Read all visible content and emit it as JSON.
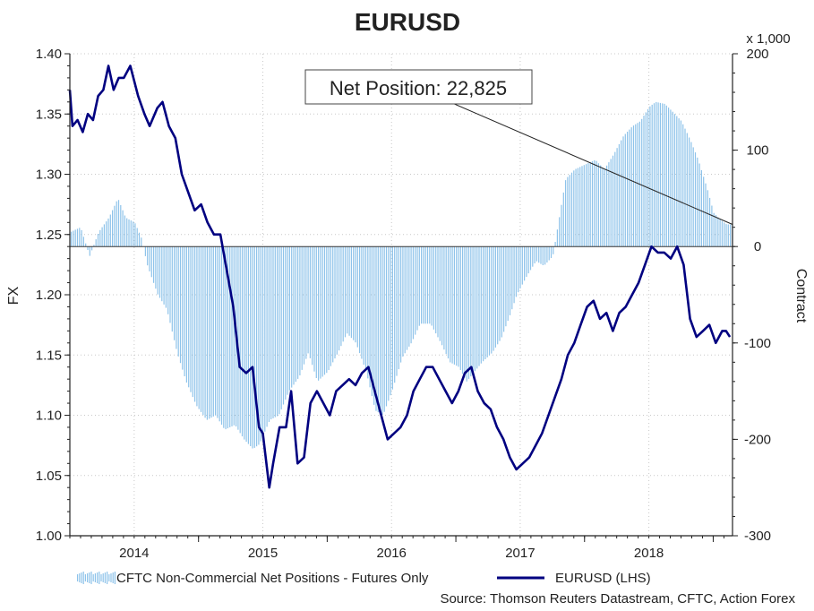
{
  "chart_data": {
    "type": "bar+line",
    "title": "EURUSD",
    "annotation": "Net Position: 22,825",
    "left_axis": {
      "label": "FX",
      "range": [
        1.0,
        1.4
      ],
      "ticks": [
        "1.00",
        "1.05",
        "1.10",
        "1.15",
        "1.20",
        "1.25",
        "1.30",
        "1.35",
        "1.40"
      ],
      "tick_values": [
        1.0,
        1.05,
        1.1,
        1.15,
        1.2,
        1.25,
        1.3,
        1.35,
        1.4
      ]
    },
    "right_axis": {
      "label": "Contract",
      "unit_note": "x 1,000",
      "range": [
        -300,
        200
      ],
      "ticks": [
        "-300",
        "-200",
        "-100",
        "0",
        "100",
        "200"
      ],
      "tick_values": [
        -300,
        -200,
        -100,
        0,
        100,
        200
      ]
    },
    "x_axis": {
      "range": [
        2013.5,
        2018.65
      ],
      "year_labels": [
        "2014",
        "2015",
        "2016",
        "2017",
        "2018"
      ],
      "year_label_positions": [
        2014.0,
        2015.0,
        2016.0,
        2017.0,
        2018.0
      ],
      "year_boundaries": [
        2014.5,
        2015.5,
        2016.5,
        2017.5,
        2018.5
      ]
    },
    "series": [
      {
        "name": "CFTC Non-Commercial Net Positions - Futures Only",
        "kind": "bar",
        "axis": "right",
        "color": "#8ec3ea",
        "points": [
          [
            2013.5,
            15
          ],
          [
            2013.58,
            20
          ],
          [
            2013.65,
            -10
          ],
          [
            2013.72,
            15
          ],
          [
            2013.8,
            30
          ],
          [
            2013.87,
            50
          ],
          [
            2013.93,
            30
          ],
          [
            2014.0,
            25
          ],
          [
            2014.05,
            10
          ],
          [
            2014.1,
            -20
          ],
          [
            2014.18,
            -50
          ],
          [
            2014.25,
            -65
          ],
          [
            2014.33,
            -110
          ],
          [
            2014.4,
            -140
          ],
          [
            2014.48,
            -165
          ],
          [
            2014.56,
            -180
          ],
          [
            2014.63,
            -175
          ],
          [
            2014.7,
            -190
          ],
          [
            2014.78,
            -185
          ],
          [
            2014.85,
            -200
          ],
          [
            2014.92,
            -210
          ],
          [
            2014.97,
            -205
          ],
          [
            2015.05,
            -180
          ],
          [
            2015.12,
            -175
          ],
          [
            2015.2,
            -150
          ],
          [
            2015.28,
            -135
          ],
          [
            2015.35,
            -110
          ],
          [
            2015.42,
            -140
          ],
          [
            2015.5,
            -130
          ],
          [
            2015.58,
            -110
          ],
          [
            2015.65,
            -90
          ],
          [
            2015.72,
            -100
          ],
          [
            2015.8,
            -130
          ],
          [
            2015.87,
            -170
          ],
          [
            2015.93,
            -175
          ],
          [
            2016.0,
            -150
          ],
          [
            2016.08,
            -115
          ],
          [
            2016.15,
            -100
          ],
          [
            2016.22,
            -80
          ],
          [
            2016.3,
            -80
          ],
          [
            2016.38,
            -100
          ],
          [
            2016.45,
            -120
          ],
          [
            2016.52,
            -125
          ],
          [
            2016.58,
            -140
          ],
          [
            2016.64,
            -130
          ],
          [
            2016.7,
            -120
          ],
          [
            2016.78,
            -110
          ],
          [
            2016.85,
            -95
          ],
          [
            2016.92,
            -70
          ],
          [
            2016.97,
            -50
          ],
          [
            2017.05,
            -30
          ],
          [
            2017.12,
            -15
          ],
          [
            2017.18,
            -20
          ],
          [
            2017.25,
            -10
          ],
          [
            2017.3,
            30
          ],
          [
            2017.35,
            70
          ],
          [
            2017.42,
            80
          ],
          [
            2017.5,
            85
          ],
          [
            2017.58,
            90
          ],
          [
            2017.65,
            80
          ],
          [
            2017.72,
            95
          ],
          [
            2017.8,
            115
          ],
          [
            2017.87,
            125
          ],
          [
            2017.93,
            130
          ],
          [
            2018.0,
            145
          ],
          [
            2018.05,
            150
          ],
          [
            2018.12,
            148
          ],
          [
            2018.18,
            140
          ],
          [
            2018.25,
            130
          ],
          [
            2018.32,
            110
          ],
          [
            2018.38,
            90
          ],
          [
            2018.45,
            60
          ],
          [
            2018.5,
            35
          ],
          [
            2018.55,
            28
          ],
          [
            2018.6,
            23
          ]
        ]
      },
      {
        "name": "EURUSD (LHS)",
        "kind": "line",
        "axis": "left",
        "color": "#000080",
        "points": [
          [
            2013.5,
            1.37
          ],
          [
            2013.52,
            1.34
          ],
          [
            2013.56,
            1.345
          ],
          [
            2013.6,
            1.335
          ],
          [
            2013.64,
            1.35
          ],
          [
            2013.68,
            1.345
          ],
          [
            2013.72,
            1.365
          ],
          [
            2013.76,
            1.37
          ],
          [
            2013.8,
            1.39
          ],
          [
            2013.84,
            1.37
          ],
          [
            2013.88,
            1.38
          ],
          [
            2013.92,
            1.38
          ],
          [
            2013.97,
            1.39
          ],
          [
            2014.03,
            1.365
          ],
          [
            2014.08,
            1.35
          ],
          [
            2014.12,
            1.34
          ],
          [
            2014.18,
            1.355
          ],
          [
            2014.22,
            1.36
          ],
          [
            2014.27,
            1.34
          ],
          [
            2014.32,
            1.33
          ],
          [
            2014.37,
            1.3
          ],
          [
            2014.42,
            1.285
          ],
          [
            2014.47,
            1.27
          ],
          [
            2014.52,
            1.275
          ],
          [
            2014.57,
            1.26
          ],
          [
            2014.62,
            1.25
          ],
          [
            2014.67,
            1.25
          ],
          [
            2014.72,
            1.22
          ],
          [
            2014.77,
            1.19
          ],
          [
            2014.82,
            1.14
          ],
          [
            2014.87,
            1.135
          ],
          [
            2014.92,
            1.14
          ],
          [
            2014.97,
            1.09
          ],
          [
            2015.0,
            1.085
          ],
          [
            2015.05,
            1.04
          ],
          [
            2015.08,
            1.06
          ],
          [
            2015.13,
            1.09
          ],
          [
            2015.18,
            1.09
          ],
          [
            2015.22,
            1.12
          ],
          [
            2015.27,
            1.06
          ],
          [
            2015.32,
            1.065
          ],
          [
            2015.37,
            1.11
          ],
          [
            2015.42,
            1.12
          ],
          [
            2015.47,
            1.11
          ],
          [
            2015.52,
            1.1
          ],
          [
            2015.57,
            1.12
          ],
          [
            2015.62,
            1.125
          ],
          [
            2015.67,
            1.13
          ],
          [
            2015.72,
            1.125
          ],
          [
            2015.77,
            1.135
          ],
          [
            2015.82,
            1.14
          ],
          [
            2015.87,
            1.12
          ],
          [
            2015.92,
            1.1
          ],
          [
            2015.97,
            1.08
          ],
          [
            2016.02,
            1.085
          ],
          [
            2016.07,
            1.09
          ],
          [
            2016.12,
            1.1
          ],
          [
            2016.17,
            1.12
          ],
          [
            2016.22,
            1.13
          ],
          [
            2016.27,
            1.14
          ],
          [
            2016.32,
            1.14
          ],
          [
            2016.37,
            1.13
          ],
          [
            2016.42,
            1.12
          ],
          [
            2016.47,
            1.11
          ],
          [
            2016.52,
            1.12
          ],
          [
            2016.57,
            1.135
          ],
          [
            2016.62,
            1.14
          ],
          [
            2016.67,
            1.12
          ],
          [
            2016.72,
            1.11
          ],
          [
            2016.77,
            1.105
          ],
          [
            2016.82,
            1.09
          ],
          [
            2016.87,
            1.08
          ],
          [
            2016.92,
            1.065
          ],
          [
            2016.97,
            1.055
          ],
          [
            2017.02,
            1.06
          ],
          [
            2017.07,
            1.065
          ],
          [
            2017.12,
            1.075
          ],
          [
            2017.17,
            1.085
          ],
          [
            2017.22,
            1.1
          ],
          [
            2017.27,
            1.115
          ],
          [
            2017.32,
            1.13
          ],
          [
            2017.37,
            1.15
          ],
          [
            2017.42,
            1.16
          ],
          [
            2017.47,
            1.175
          ],
          [
            2017.52,
            1.19
          ],
          [
            2017.57,
            1.195
          ],
          [
            2017.62,
            1.18
          ],
          [
            2017.67,
            1.185
          ],
          [
            2017.72,
            1.17
          ],
          [
            2017.77,
            1.185
          ],
          [
            2017.82,
            1.19
          ],
          [
            2017.87,
            1.2
          ],
          [
            2017.92,
            1.21
          ],
          [
            2017.97,
            1.225
          ],
          [
            2018.02,
            1.24
          ],
          [
            2018.07,
            1.235
          ],
          [
            2018.12,
            1.235
          ],
          [
            2018.17,
            1.23
          ],
          [
            2018.22,
            1.24
          ],
          [
            2018.27,
            1.225
          ],
          [
            2018.32,
            1.18
          ],
          [
            2018.37,
            1.165
          ],
          [
            2018.42,
            1.17
          ],
          [
            2018.47,
            1.175
          ],
          [
            2018.52,
            1.16
          ],
          [
            2018.57,
            1.17
          ],
          [
            2018.6,
            1.17
          ],
          [
            2018.63,
            1.165
          ]
        ]
      }
    ],
    "legend": {
      "placement": "bottom",
      "entries": [
        "CFTC Non-Commercial Net Positions - Futures Only",
        "EURUSD (LHS)"
      ]
    },
    "source": "Source: Thomson Reuters Datastream, CFTC, Action Forex",
    "grid": true
  }
}
